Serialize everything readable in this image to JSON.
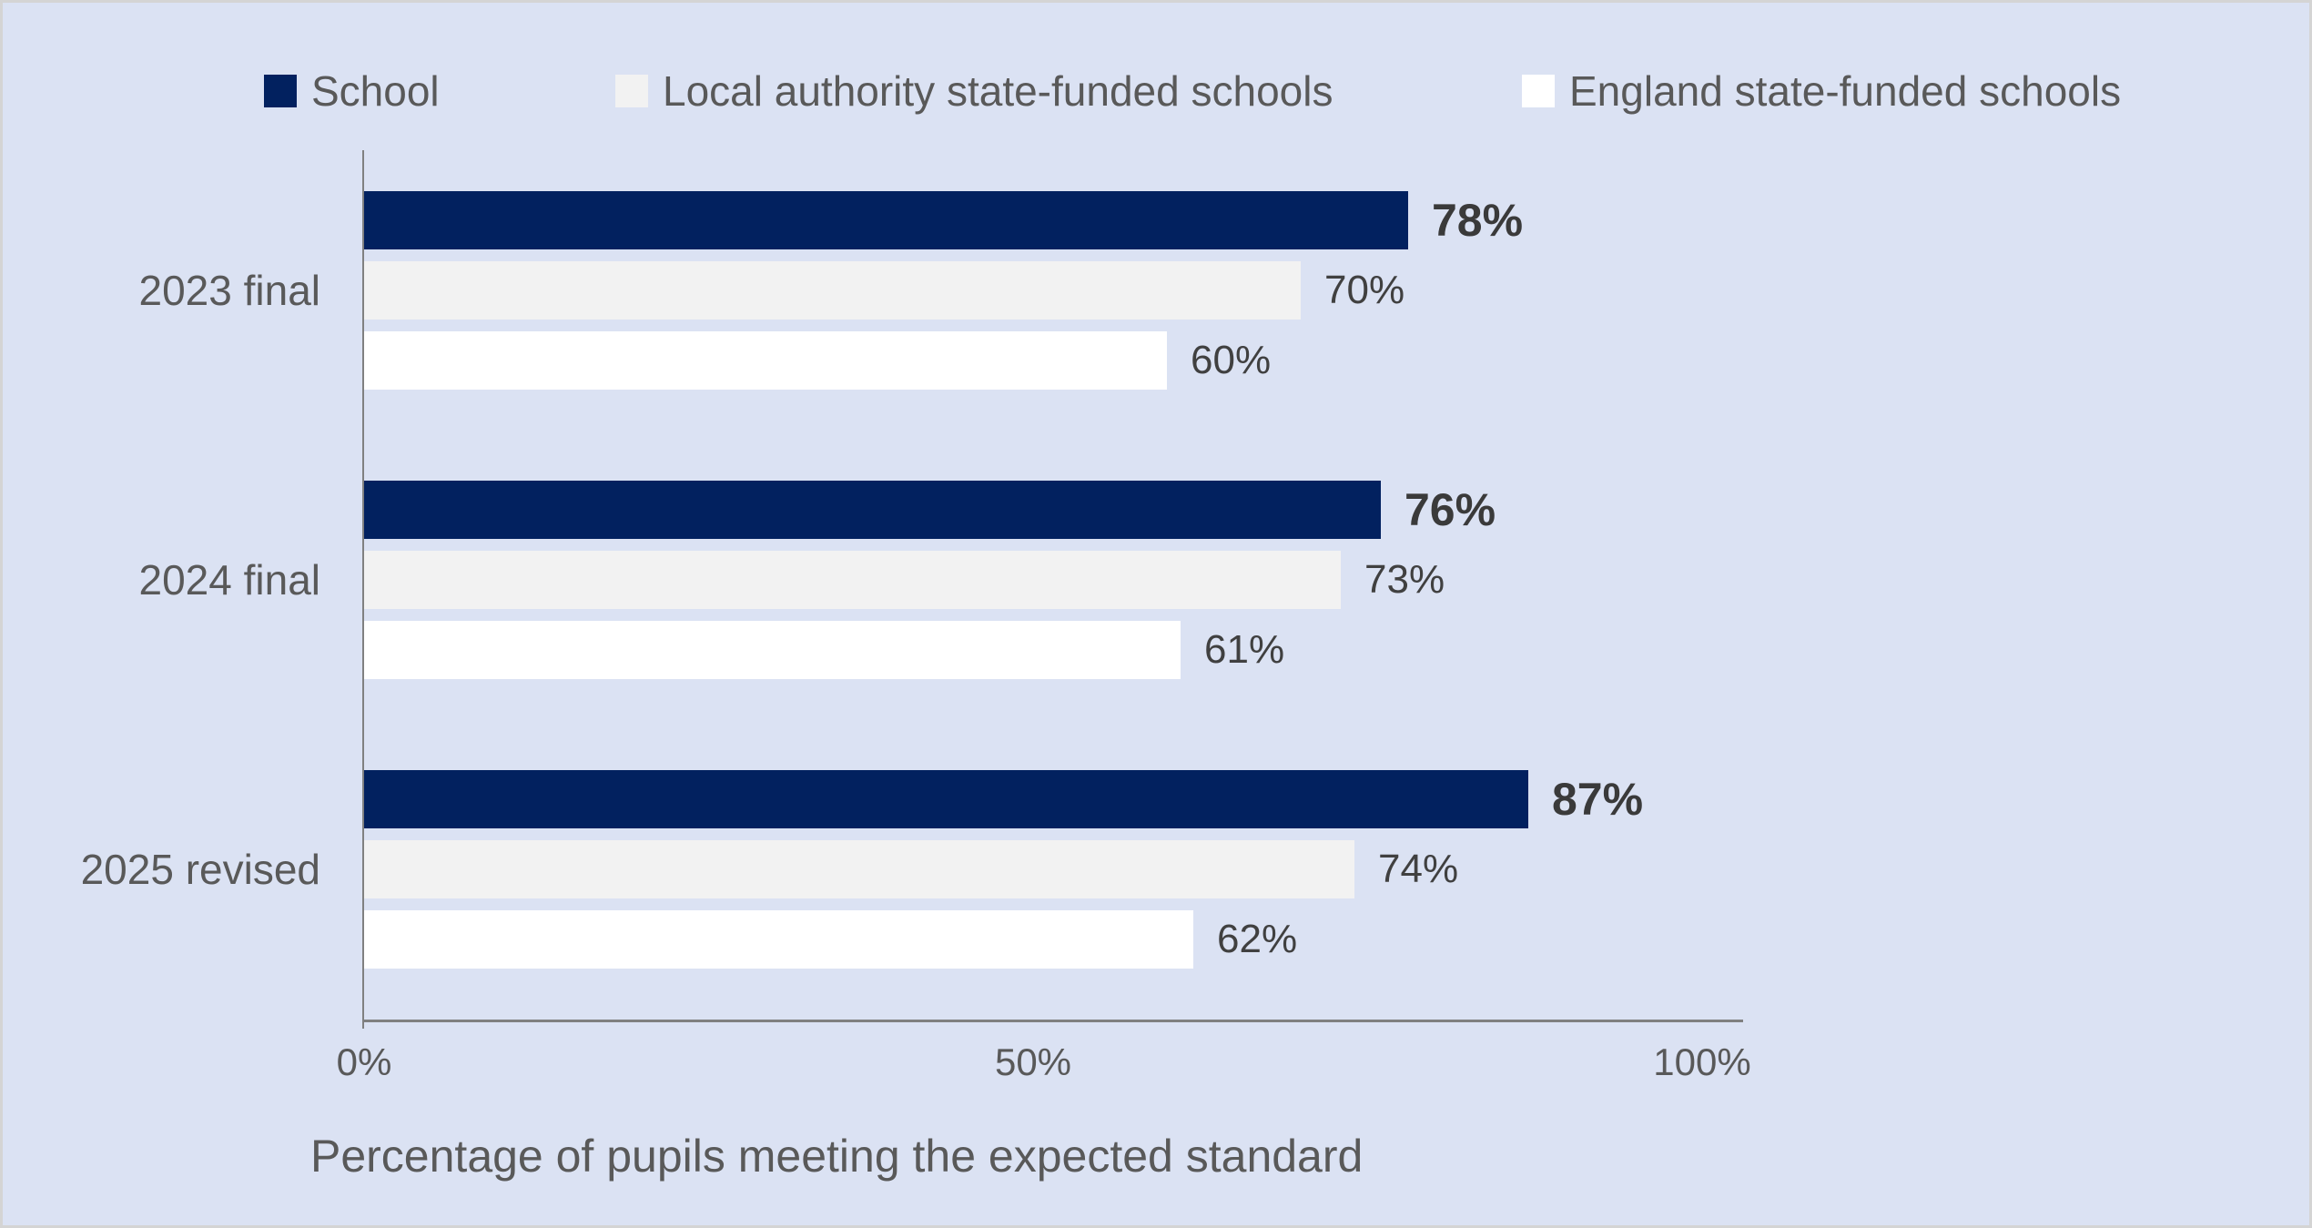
{
  "chart_data": {
    "type": "bar",
    "orientation": "horizontal",
    "title": "",
    "xlabel": "Percentage of pupils meeting the expected standard",
    "xlim": [
      0,
      100
    ],
    "xticks": [
      {
        "label": "0%",
        "value": 0
      },
      {
        "label": "50%",
        "value": 50
      },
      {
        "label": "100%",
        "value": 100
      }
    ],
    "grid": false,
    "legend_position": "top",
    "categories": [
      "2023 final",
      "2024 final",
      "2025 revised"
    ],
    "series": [
      {
        "name": "School",
        "color": "#02215f",
        "bold_labels": true,
        "values": [
          78,
          76,
          87
        ],
        "labels": [
          "78%",
          "76%",
          "87%"
        ]
      },
      {
        "name": "Local authority state-funded schools",
        "color": "#f2f2f2",
        "bold_labels": false,
        "values": [
          70,
          73,
          74
        ],
        "labels": [
          "70%",
          "73%",
          "74%"
        ]
      },
      {
        "name": "England state-funded schools",
        "color": "#ffffff",
        "bold_labels": false,
        "values": [
          60,
          61,
          62
        ],
        "labels": [
          "60%",
          "61%",
          "62%"
        ]
      }
    ]
  },
  "colors": {
    "background": "#dbe2f3",
    "frame_border": "#d4d4d4",
    "axis_line": "#808080",
    "label_text": "#595959",
    "data_label": "#404040",
    "data_label_bold": "#3a3a3a"
  }
}
